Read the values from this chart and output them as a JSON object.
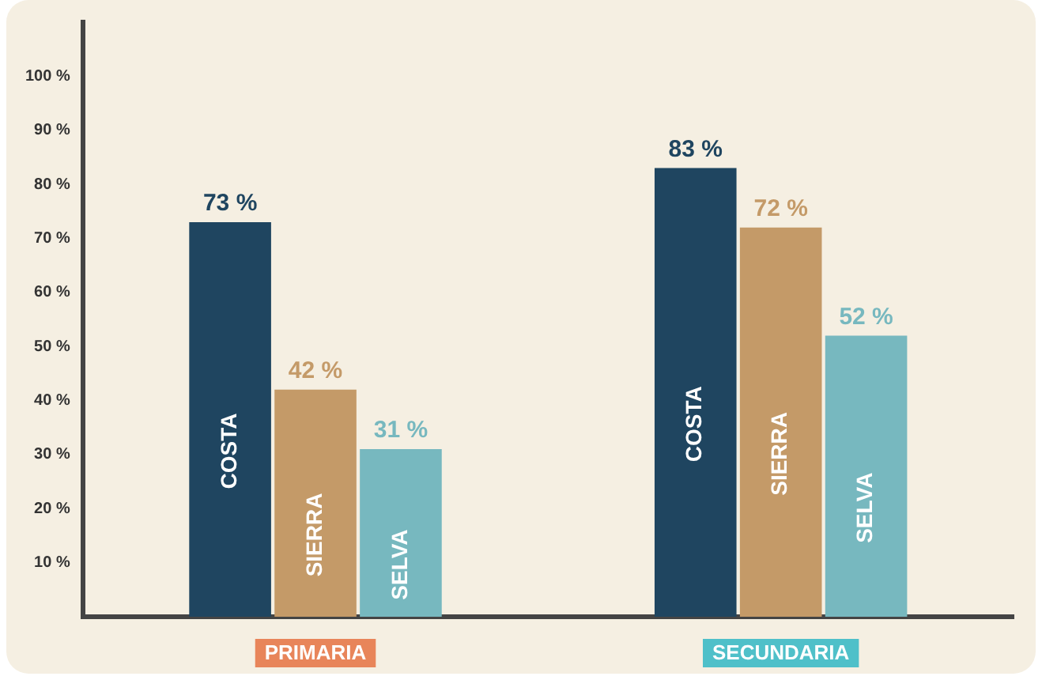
{
  "chart_data": {
    "type": "bar",
    "categories": [
      "PRIMARIA",
      "SECUNDARIA"
    ],
    "series": [
      {
        "name": "COSTA",
        "color": "#1f4560",
        "values": [
          73,
          83
        ],
        "value_labels": [
          "73 %",
          "83 %"
        ]
      },
      {
        "name": "SIERRA",
        "color": "#c49a68",
        "values": [
          42,
          72
        ],
        "value_labels": [
          "42 %",
          "72 %"
        ]
      },
      {
        "name": "SELVA",
        "color": "#77b8bf",
        "values": [
          31,
          52
        ],
        "value_labels": [
          "31 %",
          "52 %"
        ]
      }
    ],
    "ylim": [
      0,
      110
    ],
    "yticks": [
      {
        "value": 10,
        "label": "10 %"
      },
      {
        "value": 20,
        "label": "20 %"
      },
      {
        "value": 30,
        "label": "30 %"
      },
      {
        "value": 40,
        "label": "40 %"
      },
      {
        "value": 50,
        "label": "50 %"
      },
      {
        "value": 60,
        "label": "60 %"
      },
      {
        "value": 70,
        "label": "70 %"
      },
      {
        "value": 80,
        "label": "80 %"
      },
      {
        "value": 90,
        "label": "90 %"
      },
      {
        "value": 100,
        "label": "100 %"
      }
    ],
    "grid": false,
    "legend": false
  }
}
